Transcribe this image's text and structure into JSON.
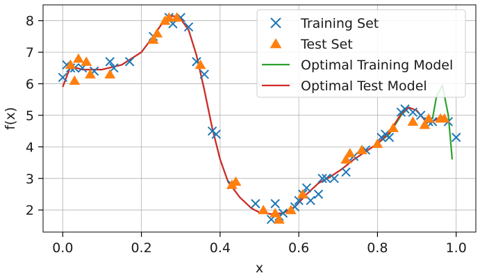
{
  "chart_data": {
    "type": "scatter",
    "xlabel": "x",
    "ylabel": "f(x)",
    "xlim": [
      -0.05,
      1.05
    ],
    "ylim": [
      1.3,
      8.5
    ],
    "xticks": [
      0.0,
      0.2,
      0.4,
      0.6,
      0.8,
      1.0
    ],
    "xtick_labels": [
      "0.0",
      "0.2",
      "0.4",
      "0.6",
      "0.8",
      "1.0"
    ],
    "yticks": [
      2,
      3,
      4,
      5,
      6,
      7,
      8
    ],
    "ytick_labels": [
      "2",
      "3",
      "4",
      "5",
      "6",
      "7",
      "8"
    ],
    "grid": true,
    "legend_position": "top-right",
    "series": [
      {
        "name": "Training Set",
        "kind": "scatter",
        "marker": "x",
        "color": "#1f77b4",
        "points": [
          [
            0.0,
            6.2
          ],
          [
            0.01,
            6.6
          ],
          [
            0.02,
            6.5
          ],
          [
            0.03,
            6.5
          ],
          [
            0.05,
            6.5
          ],
          [
            0.08,
            6.4
          ],
          [
            0.12,
            6.7
          ],
          [
            0.13,
            6.5
          ],
          [
            0.17,
            6.7
          ],
          [
            0.23,
            7.5
          ],
          [
            0.27,
            8.1
          ],
          [
            0.28,
            7.9
          ],
          [
            0.3,
            8.1
          ],
          [
            0.32,
            7.8
          ],
          [
            0.34,
            6.7
          ],
          [
            0.36,
            6.3
          ],
          [
            0.38,
            4.5
          ],
          [
            0.39,
            4.4
          ],
          [
            0.43,
            2.8
          ],
          [
            0.49,
            2.2
          ],
          [
            0.53,
            1.7
          ],
          [
            0.54,
            2.2
          ],
          [
            0.55,
            1.8
          ],
          [
            0.56,
            1.9
          ],
          [
            0.59,
            2.1
          ],
          [
            0.6,
            2.3
          ],
          [
            0.61,
            2.5
          ],
          [
            0.62,
            2.7
          ],
          [
            0.63,
            2.3
          ],
          [
            0.65,
            2.5
          ],
          [
            0.66,
            3.0
          ],
          [
            0.67,
            3.0
          ],
          [
            0.69,
            3.0
          ],
          [
            0.72,
            3.2
          ],
          [
            0.74,
            3.7
          ],
          [
            0.77,
            3.9
          ],
          [
            0.81,
            4.3
          ],
          [
            0.82,
            4.4
          ],
          [
            0.83,
            4.3
          ],
          [
            0.86,
            5.1
          ],
          [
            0.87,
            5.2
          ],
          [
            0.89,
            5.1
          ],
          [
            0.91,
            5.0
          ],
          [
            0.93,
            4.8
          ],
          [
            0.94,
            4.8
          ],
          [
            0.98,
            4.8
          ],
          [
            1.0,
            4.3
          ]
        ]
      },
      {
        "name": "Test Set",
        "kind": "scatter",
        "marker": "triangle",
        "color": "#ff7f0e",
        "points": [
          [
            0.02,
            6.6
          ],
          [
            0.03,
            6.1
          ],
          [
            0.04,
            6.8
          ],
          [
            0.06,
            6.7
          ],
          [
            0.07,
            6.3
          ],
          [
            0.12,
            6.3
          ],
          [
            0.23,
            7.4
          ],
          [
            0.24,
            7.6
          ],
          [
            0.26,
            8.0
          ],
          [
            0.27,
            8.1
          ],
          [
            0.29,
            8.1
          ],
          [
            0.35,
            6.6
          ],
          [
            0.43,
            2.8
          ],
          [
            0.44,
            2.9
          ],
          [
            0.51,
            2.0
          ],
          [
            0.54,
            1.9
          ],
          [
            0.55,
            1.7
          ],
          [
            0.58,
            2.0
          ],
          [
            0.61,
            2.5
          ],
          [
            0.72,
            3.6
          ],
          [
            0.73,
            3.8
          ],
          [
            0.76,
            3.9
          ],
          [
            0.8,
            4.1
          ],
          [
            0.84,
            4.6
          ],
          [
            0.89,
            4.8
          ],
          [
            0.92,
            4.7
          ],
          [
            0.93,
            4.9
          ],
          [
            0.96,
            4.9
          ],
          [
            0.97,
            4.9
          ]
        ]
      },
      {
        "name": "Optimal Training Model",
        "kind": "line",
        "color": "#2ca02c",
        "points": [
          [
            0.0,
            5.9
          ],
          [
            0.02,
            6.55
          ],
          [
            0.05,
            6.45
          ],
          [
            0.1,
            6.45
          ],
          [
            0.15,
            6.6
          ],
          [
            0.2,
            7.0
          ],
          [
            0.23,
            7.5
          ],
          [
            0.26,
            8.05
          ],
          [
            0.28,
            8.15
          ],
          [
            0.3,
            8.05
          ],
          [
            0.32,
            7.7
          ],
          [
            0.34,
            6.9
          ],
          [
            0.36,
            5.8
          ],
          [
            0.38,
            4.6
          ],
          [
            0.4,
            3.6
          ],
          [
            0.42,
            2.9
          ],
          [
            0.45,
            2.4
          ],
          [
            0.48,
            2.05
          ],
          [
            0.5,
            1.92
          ],
          [
            0.53,
            1.87
          ],
          [
            0.56,
            1.9
          ],
          [
            0.59,
            2.1
          ],
          [
            0.62,
            2.5
          ],
          [
            0.65,
            2.85
          ],
          [
            0.68,
            3.05
          ],
          [
            0.71,
            3.3
          ],
          [
            0.74,
            3.6
          ],
          [
            0.77,
            3.85
          ],
          [
            0.8,
            4.1
          ],
          [
            0.83,
            4.4
          ],
          [
            0.86,
            5.0
          ],
          [
            0.88,
            5.25
          ],
          [
            0.9,
            5.15
          ],
          [
            0.92,
            4.85
          ],
          [
            0.94,
            4.9
          ],
          [
            0.95,
            5.6
          ],
          [
            0.965,
            5.95
          ],
          [
            0.98,
            5.0
          ],
          [
            0.99,
            3.6
          ]
        ]
      },
      {
        "name": "Optimal Test Model",
        "kind": "line",
        "color": "#d62728",
        "points": [
          [
            0.0,
            5.9
          ],
          [
            0.02,
            6.55
          ],
          [
            0.05,
            6.45
          ],
          [
            0.1,
            6.45
          ],
          [
            0.15,
            6.6
          ],
          [
            0.2,
            7.0
          ],
          [
            0.23,
            7.5
          ],
          [
            0.26,
            8.05
          ],
          [
            0.28,
            8.15
          ],
          [
            0.3,
            8.05
          ],
          [
            0.32,
            7.7
          ],
          [
            0.34,
            6.9
          ],
          [
            0.36,
            5.8
          ],
          [
            0.38,
            4.6
          ],
          [
            0.4,
            3.6
          ],
          [
            0.42,
            2.9
          ],
          [
            0.45,
            2.4
          ],
          [
            0.48,
            2.05
          ],
          [
            0.5,
            1.92
          ],
          [
            0.53,
            1.87
          ],
          [
            0.56,
            1.9
          ],
          [
            0.59,
            2.1
          ],
          [
            0.62,
            2.5
          ],
          [
            0.65,
            2.85
          ],
          [
            0.68,
            3.05
          ],
          [
            0.71,
            3.3
          ],
          [
            0.74,
            3.6
          ],
          [
            0.77,
            3.85
          ],
          [
            0.8,
            4.1
          ],
          [
            0.83,
            4.45
          ],
          [
            0.86,
            5.05
          ],
          [
            0.88,
            5.25
          ],
          [
            0.9,
            5.15
          ],
          [
            0.92,
            4.85
          ],
          [
            0.94,
            4.8
          ],
          [
            0.96,
            4.95
          ],
          [
            0.97,
            4.95
          ]
        ]
      }
    ]
  }
}
